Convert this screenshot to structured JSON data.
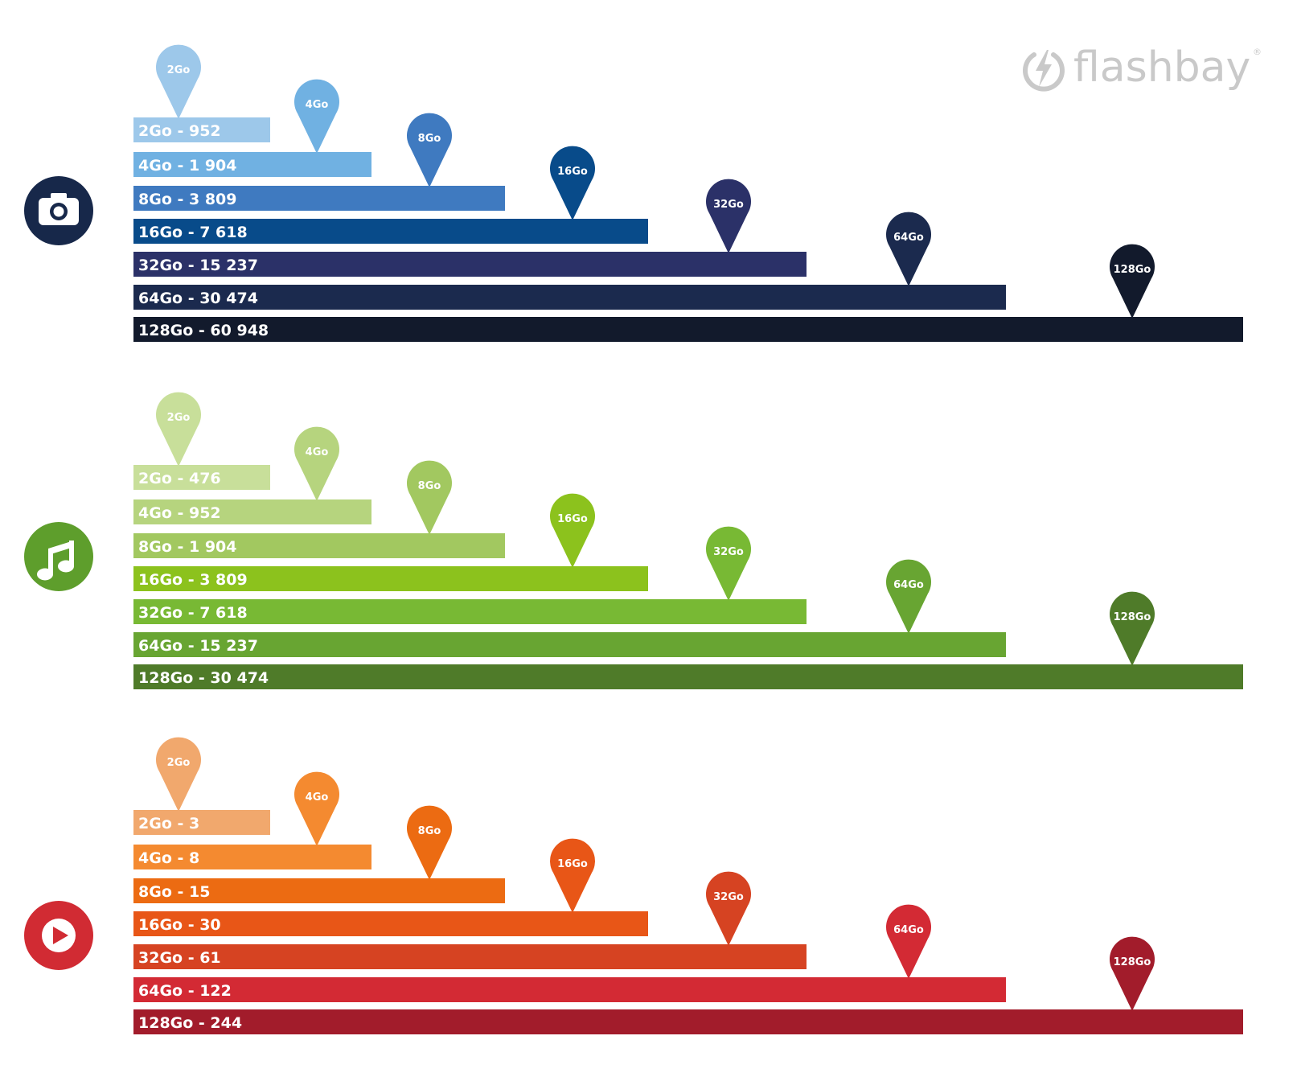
{
  "brand": {
    "name": "flashbay",
    "registered_mark": "®",
    "logo_icon": "lightning-power-icon"
  },
  "chart_data": [
    {
      "type": "bar",
      "icon": "camera-icon",
      "icon_color": "#17284a",
      "categories": [
        "2Go",
        "4Go",
        "8Go",
        "16Go",
        "32Go",
        "64Go",
        "128Go"
      ],
      "values": [
        952,
        1904,
        3809,
        7618,
        15237,
        30474,
        60948
      ],
      "labels": [
        "2Go - 952",
        "4Go - 1 904",
        "8Go - 3 809",
        "16Go - 7 618",
        "32Go - 15 237",
        "64Go - 30 474",
        "128Go - 60 948"
      ],
      "colors": [
        "#9dc8ea",
        "#70b1e2",
        "#3f7ac0",
        "#084b8a",
        "#2b3168",
        "#1b2a4e",
        "#121a2c"
      ]
    },
    {
      "type": "bar",
      "icon": "music-note-icon",
      "icon_color": "#5e9e2c",
      "categories": [
        "2Go",
        "4Go",
        "8Go",
        "16Go",
        "32Go",
        "64Go",
        "128Go"
      ],
      "values": [
        476,
        952,
        1904,
        3809,
        7618,
        15237,
        30474
      ],
      "labels": [
        "2Go - 476",
        "4Go - 952",
        "8Go - 1 904",
        "16Go - 3 809",
        "32Go - 7 618",
        "64Go - 15 237",
        "128Go - 30 474"
      ],
      "colors": [
        "#c8df9a",
        "#b6d47e",
        "#a2c860",
        "#8cc21d",
        "#78b934",
        "#68a532",
        "#4f7b29"
      ]
    },
    {
      "type": "bar",
      "icon": "play-icon",
      "icon_color": "#d12b33",
      "categories": [
        "2Go",
        "4Go",
        "8Go",
        "16Go",
        "32Go",
        "64Go",
        "128Go"
      ],
      "values": [
        3,
        8,
        15,
        30,
        61,
        122,
        244
      ],
      "labels": [
        "2Go - 3",
        "4Go - 8",
        "8Go - 15",
        "16Go - 30",
        "32Go - 61",
        "64Go - 122",
        "128Go - 244"
      ],
      "colors": [
        "#f1a86d",
        "#f48a30",
        "#ec6b12",
        "#e85617",
        "#d64322",
        "#d32a34",
        "#a21c2b"
      ]
    }
  ]
}
